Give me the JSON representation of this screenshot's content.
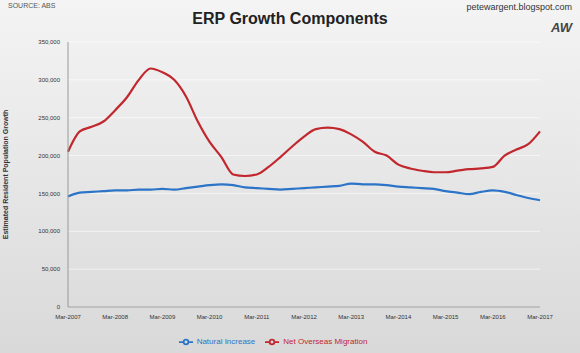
{
  "chart_data": {
    "type": "line",
    "title": "ERP Growth Components",
    "source": "SOURCE: ABS",
    "website": "petewargent.blogspot.com",
    "logo": "AW",
    "y_label": "Estimated Resident Population Growth",
    "categories": [
      "Mar-2007",
      null,
      null,
      null,
      "Mar-2008",
      null,
      null,
      null,
      "Mar-2009",
      null,
      null,
      null,
      "Mar-2010",
      null,
      null,
      null,
      "Mar-2011",
      null,
      null,
      null,
      "Mar-2012",
      null,
      null,
      null,
      "Mar-2013",
      null,
      null,
      null,
      "Mar-2014",
      null,
      null,
      null,
      "Mar-2015",
      null,
      null,
      null,
      "Mar-2016",
      null,
      null,
      null,
      "Mar-2017"
    ],
    "series": [
      {
        "name": "Natural Increase",
        "color": "#2b74c7",
        "values": [
          146000,
          151000,
          152000,
          153000,
          154000,
          154000,
          155000,
          155000,
          156000,
          155000,
          157000,
          159000,
          161000,
          162000,
          161000,
          158000,
          157000,
          156000,
          155000,
          156000,
          157000,
          158000,
          159000,
          160000,
          163000,
          162000,
          162000,
          161000,
          159000,
          158000,
          157000,
          156000,
          153000,
          151000,
          149000,
          152000,
          154000,
          152000,
          148000,
          144000,
          141000
        ]
      },
      {
        "name": "Net Overseas Migration",
        "color": "#c1272d",
        "values": [
          205000,
          232000,
          238000,
          245000,
          260000,
          277000,
          300000,
          315000,
          310000,
          300000,
          278000,
          245000,
          218000,
          198000,
          175000,
          173000,
          175000,
          185000,
          198000,
          212000,
          225000,
          235000,
          237000,
          235000,
          228000,
          218000,
          205000,
          200000,
          188000,
          183000,
          180000,
          178000,
          178000,
          180000,
          182000,
          183000,
          185000,
          200000,
          208000,
          215000,
          232000
        ]
      }
    ],
    "ylim": [
      0,
      350000
    ],
    "yticks": [
      0,
      {
        "value": 50000,
        "label": "50,000"
      },
      {
        "value": 100000,
        "label": "100,000"
      },
      {
        "value": 150000,
        "label": "150,000"
      },
      {
        "value": 200000,
        "label": "200,000"
      },
      {
        "value": 250000,
        "label": "250,000"
      },
      {
        "value": 300000,
        "label": "300,000"
      },
      {
        "value": 350000,
        "label": "350,000"
      }
    ],
    "grid": true,
    "legend": "bottom"
  }
}
